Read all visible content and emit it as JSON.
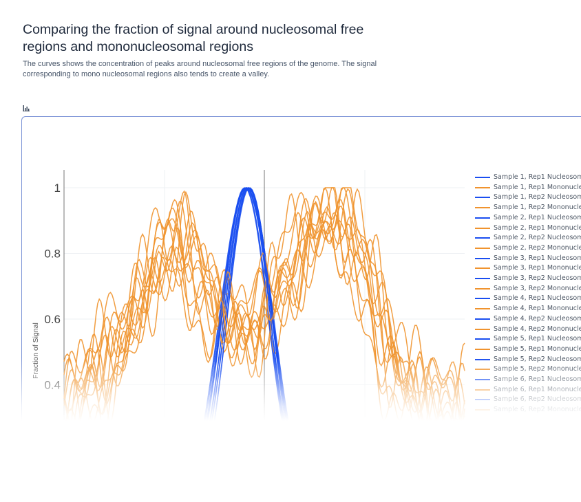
{
  "page": {
    "title": "Comparing the fraction of signal around nucleosomal free regions and mononucleosomal regions",
    "description": "The curves shows the concentration of peaks around nucleosomal free regions of the genome. The signal corresponding to mono nucleosomal regions also tends to create a valley.",
    "chart_icon": "bar-chart-icon"
  },
  "chart_data": {
    "type": "line",
    "ylabel": "Fraction of Signal",
    "xlabel": "",
    "y_ticks": [
      "1",
      "0.8",
      "0.6",
      "0.4"
    ],
    "ylim": [
      0.28,
      1.05
    ],
    "xlim": [
      -1000,
      1000
    ],
    "grid": true,
    "legend_placement": "right",
    "colors": {
      "nucleosomal": "#1a4ef0",
      "mononucleosomal": "#f0932e"
    },
    "nucleosomal_peak": {
      "center": -80,
      "width": 170,
      "peak": 1.0
    },
    "mononucleosomal_profile": {
      "x": [
        -1000,
        -900,
        -800,
        -700,
        -600,
        -500,
        -400,
        -300,
        -200,
        -100,
        0,
        100,
        200,
        300,
        400,
        500,
        600,
        700,
        800,
        900,
        1000
      ],
      "y": [
        0.32,
        0.38,
        0.45,
        0.55,
        0.68,
        0.82,
        0.8,
        0.72,
        0.62,
        0.56,
        0.6,
        0.72,
        0.85,
        0.9,
        0.88,
        0.75,
        0.55,
        0.42,
        0.35,
        0.32,
        0.3
      ]
    },
    "series": [
      {
        "name": "Sample 1, Rep1 Nucleosom",
        "kind": "nucleosomal"
      },
      {
        "name": "Sample 1, Rep1 Mononucle",
        "kind": "mononucleosomal"
      },
      {
        "name": "Sample 1, Rep2 Nucleosom",
        "kind": "nucleosomal"
      },
      {
        "name": "Sample 1, Rep2 Mononucle",
        "kind": "mononucleosomal"
      },
      {
        "name": "Sample 2, Rep1 Nucleosom",
        "kind": "nucleosomal"
      },
      {
        "name": "Sample 2, Rep1 Mononucle",
        "kind": "mononucleosomal"
      },
      {
        "name": "Sample 2, Rep2 Nucleosom",
        "kind": "nucleosomal"
      },
      {
        "name": "Sample 2, Rep2 Mononucle",
        "kind": "mononucleosomal"
      },
      {
        "name": "Sample 3, Rep1 Nucleosom",
        "kind": "nucleosomal"
      },
      {
        "name": "Sample 3, Rep1 Mononucle",
        "kind": "mononucleosomal"
      },
      {
        "name": "Sample 3, Rep2 Nucleosom",
        "kind": "nucleosomal"
      },
      {
        "name": "Sample 3, Rep2 Mononucle",
        "kind": "mononucleosomal"
      },
      {
        "name": "Sample 4, Rep1 Nucleosom",
        "kind": "nucleosomal"
      },
      {
        "name": "Sample 4, Rep1 Mononucle",
        "kind": "mononucleosomal"
      },
      {
        "name": "Sample 4, Rep2 Nucleosom",
        "kind": "nucleosomal"
      },
      {
        "name": "Sample 4, Rep2 Mononucle",
        "kind": "mononucleosomal"
      },
      {
        "name": "Sample 5, Rep1 Nucleosom",
        "kind": "nucleosomal"
      },
      {
        "name": "Sample 5, Rep1 Mononucle",
        "kind": "mononucleosomal"
      },
      {
        "name": "Sample 5, Rep2 Nucleosom",
        "kind": "nucleosomal"
      },
      {
        "name": "Sample 5, Rep2 Mononucle",
        "kind": "mononucleosomal"
      },
      {
        "name": "Sample 6, Rep1 Nucleosom",
        "kind": "nucleosomal"
      },
      {
        "name": "Sample 6, Rep1 Mononucle",
        "kind": "mononucleosomal"
      },
      {
        "name": "Sample 6, Rep2 Nucleosom",
        "kind": "nucleosomal"
      },
      {
        "name": "Sample 6, Rep2 Mononucle",
        "kind": "mononucleosomal"
      }
    ]
  }
}
